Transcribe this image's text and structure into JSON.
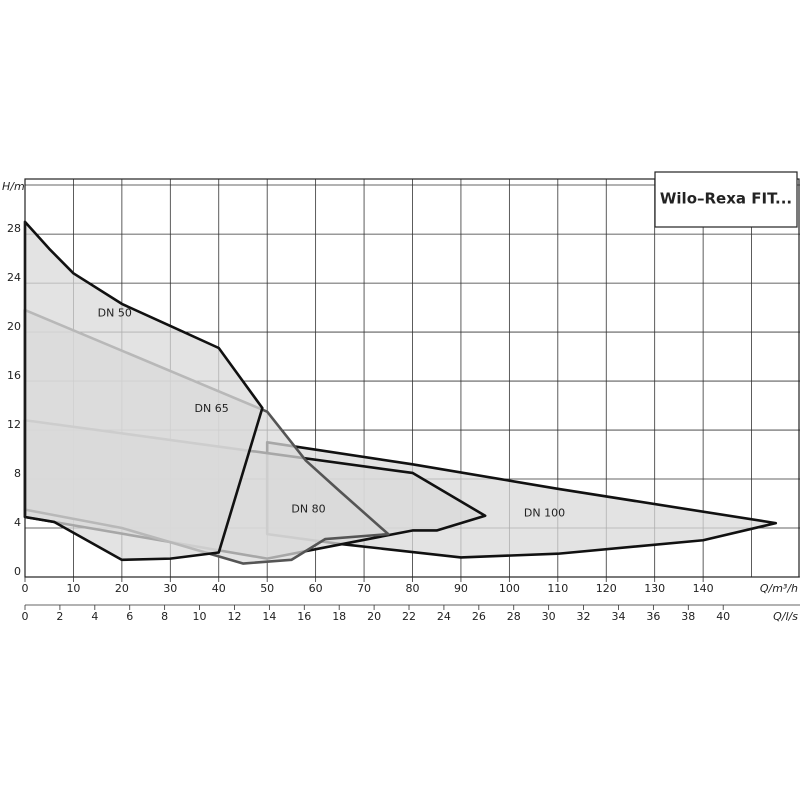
{
  "chart_data": {
    "type": "area",
    "title": "Wilo–Rexa FIT...",
    "y_label": "H/m",
    "x_label": "Q/m³/h",
    "x2_label": "Q/l/s",
    "xlim": [
      0,
      160
    ],
    "xticks": [
      0,
      10,
      20,
      30,
      40,
      50,
      60,
      70,
      80,
      90,
      100,
      110,
      120,
      130,
      140
    ],
    "ylim": [
      0,
      32.5
    ],
    "yticks": [
      0,
      4,
      8,
      12,
      16,
      20,
      24,
      28
    ],
    "x2lim": [
      0,
      44.4
    ],
    "x2ticks": [
      0,
      2,
      4,
      6,
      8,
      10,
      12,
      14,
      16,
      18,
      20,
      22,
      24,
      26,
      28,
      30,
      32,
      34,
      36,
      38,
      40
    ],
    "grid": true,
    "fill": "#d9d9d9",
    "series": [
      {
        "name": "DN 100",
        "color": "#111111",
        "x": [
          50,
          80,
          110,
          155,
          140,
          110,
          90,
          65,
          50
        ],
        "values": [
          11,
          9.2,
          7.2,
          4.4,
          3,
          1.9,
          1.6,
          2.7,
          3.5
        ]
      },
      {
        "name": "DN 80",
        "color": "#111111",
        "x": [
          0,
          80,
          95,
          85,
          80,
          50,
          0
        ],
        "values": [
          12.8,
          8.5,
          5,
          3.8,
          3.8,
          1.5,
          4.9
        ]
      },
      {
        "name": "DN 65",
        "color": "#555555",
        "x": [
          0,
          50,
          58,
          65,
          75,
          62,
          55,
          45,
          20,
          0
        ],
        "values": [
          21.8,
          13.5,
          9.5,
          7,
          3.5,
          3.1,
          1.4,
          1.1,
          4,
          5.5
        ]
      },
      {
        "name": "DN 50",
        "color": "#111111",
        "x": [
          0,
          5,
          10,
          20,
          30,
          40,
          49,
          40,
          30,
          20,
          6,
          0
        ],
        "values": [
          29,
          26.8,
          24.8,
          22.3,
          20.5,
          18.7,
          13.8,
          2,
          1.5,
          1.4,
          4.5,
          4.9
        ]
      }
    ]
  }
}
